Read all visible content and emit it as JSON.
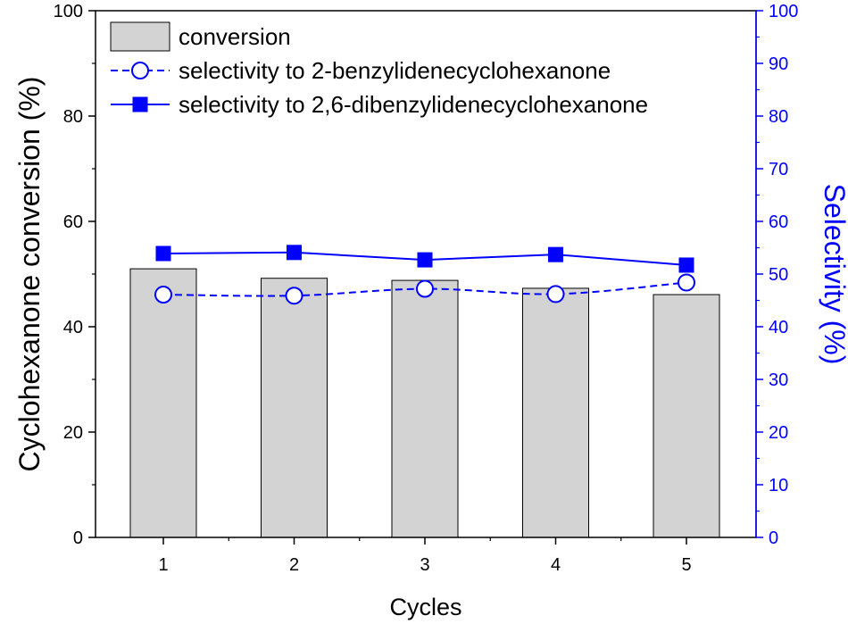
{
  "chart_data": {
    "type": "bar",
    "categories": [
      "1",
      "2",
      "3",
      "4",
      "5"
    ],
    "xlabel": "Cycles",
    "ylabel_left": "Cyclohexanone conversion (%)",
    "ylabel_right": "Selectivity (%)",
    "ylim_left": [
      0,
      100
    ],
    "ylim_right": [
      0,
      100
    ],
    "yticks_left": [
      "0",
      "20",
      "40",
      "60",
      "80",
      "100"
    ],
    "yticks_right": [
      "0",
      "10",
      "20",
      "30",
      "40",
      "50",
      "60",
      "70",
      "80",
      "90",
      "100"
    ],
    "grid": false,
    "legend_position": "top-left",
    "series": [
      {
        "name": "conversion",
        "kind": "bar",
        "axis": "left",
        "color": "#d3d3d3",
        "values": [
          51.0,
          49.2,
          48.8,
          47.3,
          46.1
        ]
      },
      {
        "name": "selectivity to 2-benzylidenecyclohexanone",
        "kind": "line-dashed",
        "marker": "open-circle",
        "axis": "right",
        "color": "#0000ff",
        "values": [
          46.1,
          45.9,
          47.2,
          46.2,
          48.4
        ]
      },
      {
        "name": "selectivity to 2,6-dibenzylidenecyclohexanone",
        "kind": "line-solid",
        "marker": "filled-square",
        "axis": "right",
        "color": "#0000ff",
        "values": [
          53.9,
          54.1,
          52.7,
          53.7,
          51.7
        ]
      }
    ]
  }
}
